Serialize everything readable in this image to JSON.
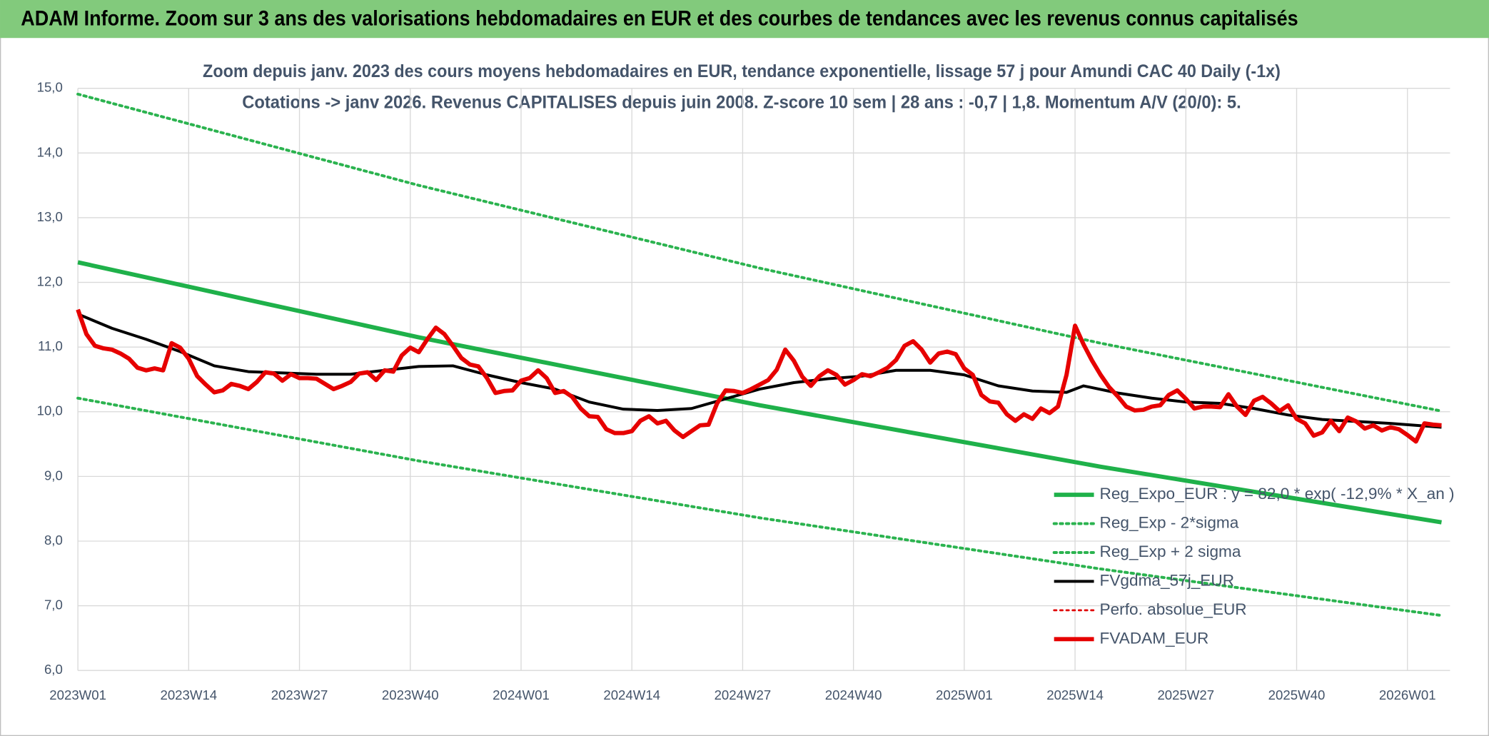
{
  "chart_data": {
    "type": "line",
    "header": "ADAM Informe. Zoom sur 3 ans des valorisations hebdomadaires en EUR et des courbes de tendances avec les revenus connus capitalisés",
    "title": "Zoom depuis janv. 2023 des cours moyens hebdomadaires en EUR, tendance exponentielle, lissage 57 j pour Amundi CAC 40 Daily (-1x)",
    "subtitle": "Cotations -> janv 2026. Revenus CAPITALISES depuis juin 2008. Z-score 10 sem | 28 ans : -0,7 | 1,8. Momentum A/V (20/0): 5.",
    "xlim": [
      0,
      161
    ],
    "xticks": [
      {
        "value": 0,
        "label": "2023W01"
      },
      {
        "value": 13,
        "label": "2023W14"
      },
      {
        "value": 26,
        "label": "2023W27"
      },
      {
        "value": 39,
        "label": "2023W40"
      },
      {
        "value": 52,
        "label": "2024W01"
      },
      {
        "value": 65,
        "label": "2024W14"
      },
      {
        "value": 78,
        "label": "2024W27"
      },
      {
        "value": 91,
        "label": "2024W40"
      },
      {
        "value": 104,
        "label": "2025W01"
      },
      {
        "value": 117,
        "label": "2025W14"
      },
      {
        "value": 130,
        "label": "2025W27"
      },
      {
        "value": 143,
        "label": "2025W40"
      },
      {
        "value": 156,
        "label": "2026W01"
      }
    ],
    "ylim": [
      6,
      15
    ],
    "yticks": [
      {
        "value": 6,
        "label": "6,0"
      },
      {
        "value": 7,
        "label": "7,0"
      },
      {
        "value": 8,
        "label": "8,0"
      },
      {
        "value": 9,
        "label": "9,0"
      },
      {
        "value": 10,
        "label": "10,0"
      },
      {
        "value": 11,
        "label": "11,0"
      },
      {
        "value": 12,
        "label": "12,0"
      },
      {
        "value": 13,
        "label": "13,0"
      },
      {
        "value": 14,
        "label": "14,0"
      },
      {
        "value": 15,
        "label": "15,0"
      }
    ],
    "grid": true,
    "legend": "bottom-right",
    "series": [
      {
        "name": "Reg_Expo_EUR : y = 82,0 * exp( -12,9% *  X_an )",
        "color": "#1fb14a",
        "style": "solid",
        "weight": "heavy",
        "x": [
          0,
          40,
          80,
          120,
          160
        ],
        "values": [
          12.31,
          11.15,
          10.1,
          9.15,
          8.29
        ]
      },
      {
        "name": "Reg_Exp - 2*sigma",
        "color": "#2bb34f",
        "style": "dotted",
        "weight": "normal",
        "x": [
          0,
          40,
          80,
          120,
          160
        ],
        "values": [
          10.21,
          9.24,
          8.36,
          7.57,
          6.85
        ]
      },
      {
        "name": "Reg_Exp + 2 sigma",
        "color": "#2bb34f",
        "style": "dotted",
        "weight": "normal",
        "x": [
          0,
          40,
          80,
          120,
          160
        ],
        "values": [
          14.91,
          13.5,
          12.22,
          11.06,
          10.01
        ]
      },
      {
        "name": "FVgdma_57j_EUR",
        "color": "#000000",
        "style": "solid",
        "weight": "normal",
        "x": [
          0,
          4,
          8,
          12,
          16,
          20,
          24,
          28,
          32,
          36,
          40,
          44,
          48,
          52,
          56,
          60,
          64,
          68,
          72,
          76,
          80,
          84,
          88,
          92,
          96,
          100,
          104,
          108,
          112,
          116,
          118,
          122,
          126,
          130,
          134,
          138,
          142,
          146,
          150,
          154,
          160
        ],
        "values": [
          11.51,
          11.29,
          11.12,
          10.93,
          10.71,
          10.62,
          10.6,
          10.58,
          10.58,
          10.64,
          10.7,
          10.71,
          10.57,
          10.45,
          10.35,
          10.15,
          10.04,
          10.02,
          10.05,
          10.2,
          10.35,
          10.45,
          10.51,
          10.55,
          10.64,
          10.64,
          10.57,
          10.4,
          10.32,
          10.3,
          10.4,
          10.29,
          10.21,
          10.15,
          10.13,
          10.05,
          9.95,
          9.88,
          9.85,
          9.82,
          9.76
        ]
      },
      {
        "name": "Perfo. absolue_EUR",
        "color": "#e00000",
        "style": "dotted",
        "weight": "thin",
        "x": [],
        "values": []
      },
      {
        "name": "FVADAM_EUR",
        "color": "#e60000",
        "style": "solid",
        "weight": "heavy",
        "x": [
          0,
          1,
          2,
          3,
          4,
          5,
          6,
          7,
          8,
          9,
          10,
          11,
          12,
          13,
          14,
          15,
          16,
          17,
          18,
          19,
          20,
          21,
          22,
          23,
          24,
          25,
          26,
          27,
          28,
          29,
          30,
          31,
          32,
          33,
          34,
          35,
          36,
          37,
          38,
          39,
          40,
          41,
          42,
          43,
          44,
          45,
          46,
          47,
          48,
          49,
          50,
          51,
          52,
          53,
          54,
          55,
          56,
          57,
          58,
          59,
          60,
          61,
          62,
          63,
          64,
          65,
          66,
          67,
          68,
          69,
          70,
          71,
          72,
          73,
          74,
          75,
          76,
          77,
          78,
          79,
          80,
          81,
          82,
          83,
          84,
          85,
          86,
          87,
          88,
          89,
          90,
          91,
          92,
          93,
          94,
          95,
          96,
          97,
          98,
          99,
          100,
          101,
          102,
          103,
          104,
          105,
          106,
          107,
          108,
          109,
          110,
          111,
          112,
          113,
          114,
          115,
          116,
          117,
          118,
          119,
          120,
          121,
          122,
          123,
          124,
          125,
          126,
          127,
          128,
          129,
          130,
          131,
          132,
          133,
          134,
          135,
          136,
          137,
          138,
          139,
          140,
          141,
          142,
          143,
          144,
          145,
          146,
          147,
          148,
          149,
          150,
          151,
          152,
          153,
          154,
          155,
          156,
          157,
          158,
          159,
          160
        ],
        "values": [
          11.58,
          11.2,
          11.02,
          10.98,
          10.96,
          10.9,
          10.82,
          10.68,
          10.64,
          10.67,
          10.64,
          11.06,
          10.99,
          10.82,
          10.55,
          10.42,
          10.3,
          10.33,
          10.43,
          10.4,
          10.35,
          10.46,
          10.61,
          10.59,
          10.48,
          10.58,
          10.52,
          10.52,
          10.51,
          10.43,
          10.35,
          10.4,
          10.46,
          10.59,
          10.61,
          10.49,
          10.64,
          10.62,
          10.87,
          10.99,
          10.92,
          11.12,
          11.3,
          11.2,
          11.02,
          10.83,
          10.73,
          10.7,
          10.52,
          10.29,
          10.32,
          10.33,
          10.48,
          10.52,
          10.64,
          10.52,
          10.29,
          10.32,
          10.23,
          10.05,
          9.93,
          9.92,
          9.73,
          9.67,
          9.67,
          9.7,
          9.86,
          9.93,
          9.82,
          9.86,
          9.71,
          9.61,
          9.7,
          9.79,
          9.8,
          10.13,
          10.33,
          10.32,
          10.29,
          10.35,
          10.42,
          10.49,
          10.65,
          10.96,
          10.79,
          10.54,
          10.4,
          10.55,
          10.64,
          10.57,
          10.42,
          10.49,
          10.58,
          10.55,
          10.61,
          10.68,
          10.8,
          11.02,
          11.09,
          10.96,
          10.76,
          10.9,
          10.93,
          10.89,
          10.67,
          10.57,
          10.26,
          10.16,
          10.14,
          9.96,
          9.86,
          9.96,
          9.89,
          10.05,
          9.98,
          10.08,
          10.57,
          11.33,
          11.04,
          10.79,
          10.57,
          10.38,
          10.24,
          10.08,
          10.02,
          10.03,
          10.08,
          10.1,
          10.26,
          10.33,
          10.2,
          10.05,
          10.08,
          10.08,
          10.07,
          10.27,
          10.08,
          9.95,
          10.17,
          10.23,
          10.13,
          10.01,
          10.1,
          9.89,
          9.82,
          9.63,
          9.68,
          9.86,
          9.7,
          9.91,
          9.85,
          9.74,
          9.79,
          9.71,
          9.76,
          9.73,
          9.64,
          9.54,
          9.82,
          9.8,
          9.79
        ]
      }
    ]
  }
}
